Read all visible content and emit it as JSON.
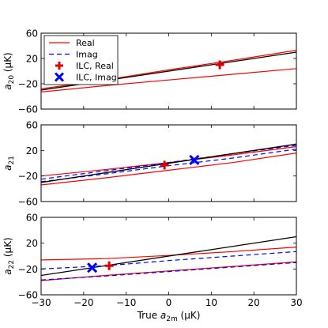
{
  "chart_data": [
    {
      "type": "line",
      "panel": "top",
      "ylabel_main": "a",
      "ylabel_sub": "20",
      "ylabel_unit": "  (μK)",
      "xlim": [
        -30,
        30
      ],
      "ylim": [
        -60,
        60
      ],
      "xticks": [
        -30,
        -20,
        -10,
        0,
        10,
        20,
        30
      ],
      "yticks": [
        -60,
        -20,
        20,
        60
      ],
      "ytick_labels": [
        "−60",
        "−20",
        "20",
        "60"
      ],
      "show_xtick_labels": false,
      "series": [
        {
          "name": "Real",
          "kind": "band_upper",
          "color": "#ff0000",
          "dash": "",
          "x": [
            -30,
            -15,
            0,
            15,
            30
          ],
          "y": [
            -28,
            -14,
            2,
            17,
            33
          ]
        },
        {
          "name": "Real",
          "kind": "band_lower",
          "color": "#ff0000",
          "dash": "",
          "x": [
            -30,
            -15,
            0,
            15,
            30
          ],
          "y": [
            -33,
            -23,
            -14,
            -5,
            4
          ]
        },
        {
          "name": "",
          "kind": "truth",
          "color": "#000000",
          "dash": "",
          "x": [
            -30,
            30
          ],
          "y": [
            -30,
            30
          ]
        }
      ],
      "markers": [
        {
          "label": "ILC, Real",
          "shape": "plus",
          "color": "#dd0000",
          "x": 12,
          "y": 10
        }
      ],
      "legend": {
        "placement": "top-left",
        "entries": [
          {
            "label": "Real",
            "style": "line",
            "color": "#ff0000"
          },
          {
            "label": "Imag",
            "style": "dashed",
            "color": "#0000ff"
          },
          {
            "label": "ILC, Real",
            "style": "plus",
            "color": "#dd0000"
          },
          {
            "label": "ILC, Imag",
            "style": "cross",
            "color": "#0000ff"
          }
        ]
      }
    },
    {
      "type": "line",
      "panel": "middle",
      "ylabel_main": "a",
      "ylabel_sub": "21",
      "ylabel_unit": "",
      "xlim": [
        -30,
        30
      ],
      "ylim": [
        -60,
        60
      ],
      "xticks": [
        -30,
        -20,
        -10,
        0,
        10,
        20,
        30
      ],
      "yticks": [
        -60,
        -20,
        20,
        60
      ],
      "ytick_labels": [
        "−60",
        "−20",
        "20",
        "60"
      ],
      "show_xtick_labels": false,
      "series": [
        {
          "name": "Real",
          "kind": "band_upper",
          "color": "#ff0000",
          "dash": "",
          "x": [
            -30,
            -15,
            0,
            15,
            30
          ],
          "y": [
            -20,
            -10,
            1,
            13,
            26
          ]
        },
        {
          "name": "Real",
          "kind": "band_lower",
          "color": "#ff0000",
          "dash": "",
          "x": [
            -30,
            -15,
            0,
            15,
            30
          ],
          "y": [
            -34,
            -23,
            -11,
            1,
            16
          ]
        },
        {
          "name": "Imag",
          "kind": "band_upper",
          "color": "#0000ff",
          "dash": "6,4",
          "x": [
            -30,
            -15,
            0,
            15,
            30
          ],
          "y": [
            -25,
            -12,
            1,
            15,
            28
          ]
        },
        {
          "name": "Imag",
          "kind": "band_lower",
          "color": "#0000ff",
          "dash": "6,4",
          "x": [
            -30,
            -15,
            0,
            15,
            30
          ],
          "y": [
            -29,
            -17,
            -4,
            8,
            22
          ]
        },
        {
          "name": "",
          "kind": "truth",
          "color": "#000000",
          "dash": "",
          "x": [
            -30,
            30
          ],
          "y": [
            -30,
            30
          ]
        }
      ],
      "markers": [
        {
          "label": "ILC, Real",
          "shape": "plus",
          "color": "#dd0000",
          "x": -1,
          "y": -3
        },
        {
          "label": "ILC, Imag",
          "shape": "cross",
          "color": "#0000ff",
          "x": 6,
          "y": 5
        }
      ]
    },
    {
      "type": "line",
      "panel": "bottom",
      "ylabel_main": "a",
      "ylabel_sub": "22",
      "ylabel_unit": "  (μK)",
      "xlabel_main": "True ",
      "xlabel_math": "a",
      "xlabel_sub": "2m",
      "xlabel_unit": "  (μK)",
      "xlim": [
        -30,
        30
      ],
      "ylim": [
        -60,
        60
      ],
      "xticks": [
        -30,
        -20,
        -10,
        0,
        10,
        20,
        30
      ],
      "xtick_labels": [
        "−30",
        "−20",
        "−10",
        "0",
        "10",
        "20",
        "30"
      ],
      "yticks": [
        -60,
        -20,
        20,
        60
      ],
      "ytick_labels": [
        "−60",
        "−20",
        "20",
        "60"
      ],
      "show_xtick_labels": true,
      "series": [
        {
          "name": "Real",
          "kind": "band_upper",
          "color": "#ff0000",
          "dash": "",
          "x": [
            -30,
            -15,
            0,
            15,
            30
          ],
          "y": [
            -6,
            -4,
            1,
            7,
            14
          ]
        },
        {
          "name": "Real",
          "kind": "band_lower",
          "color": "#ff0000",
          "dash": "",
          "x": [
            -30,
            -15,
            0,
            15,
            30
          ],
          "y": [
            -38,
            -30,
            -23,
            -16,
            -9
          ]
        },
        {
          "name": "Imag",
          "kind": "band_upper",
          "color": "#0000ff",
          "dash": "6,4",
          "x": [
            -30,
            -15,
            0,
            15,
            30
          ],
          "y": [
            -20,
            -15,
            -7,
            0,
            7
          ]
        },
        {
          "name": "Imag",
          "kind": "band_lower",
          "color": "#0000ff",
          "dash": "6,4",
          "x": [
            -30,
            -15,
            0,
            15,
            30
          ],
          "y": [
            -37,
            -31,
            -24,
            -17,
            -10
          ]
        },
        {
          "name": "",
          "kind": "truth",
          "color": "#000000",
          "dash": "",
          "x": [
            -30,
            30
          ],
          "y": [
            -30,
            30
          ]
        }
      ],
      "markers": [
        {
          "label": "ILC, Real",
          "shape": "plus",
          "color": "#dd0000",
          "x": -14,
          "y": -15
        },
        {
          "label": "ILC, Imag",
          "shape": "cross",
          "color": "#0000ff",
          "x": -18,
          "y": -18
        }
      ]
    }
  ]
}
